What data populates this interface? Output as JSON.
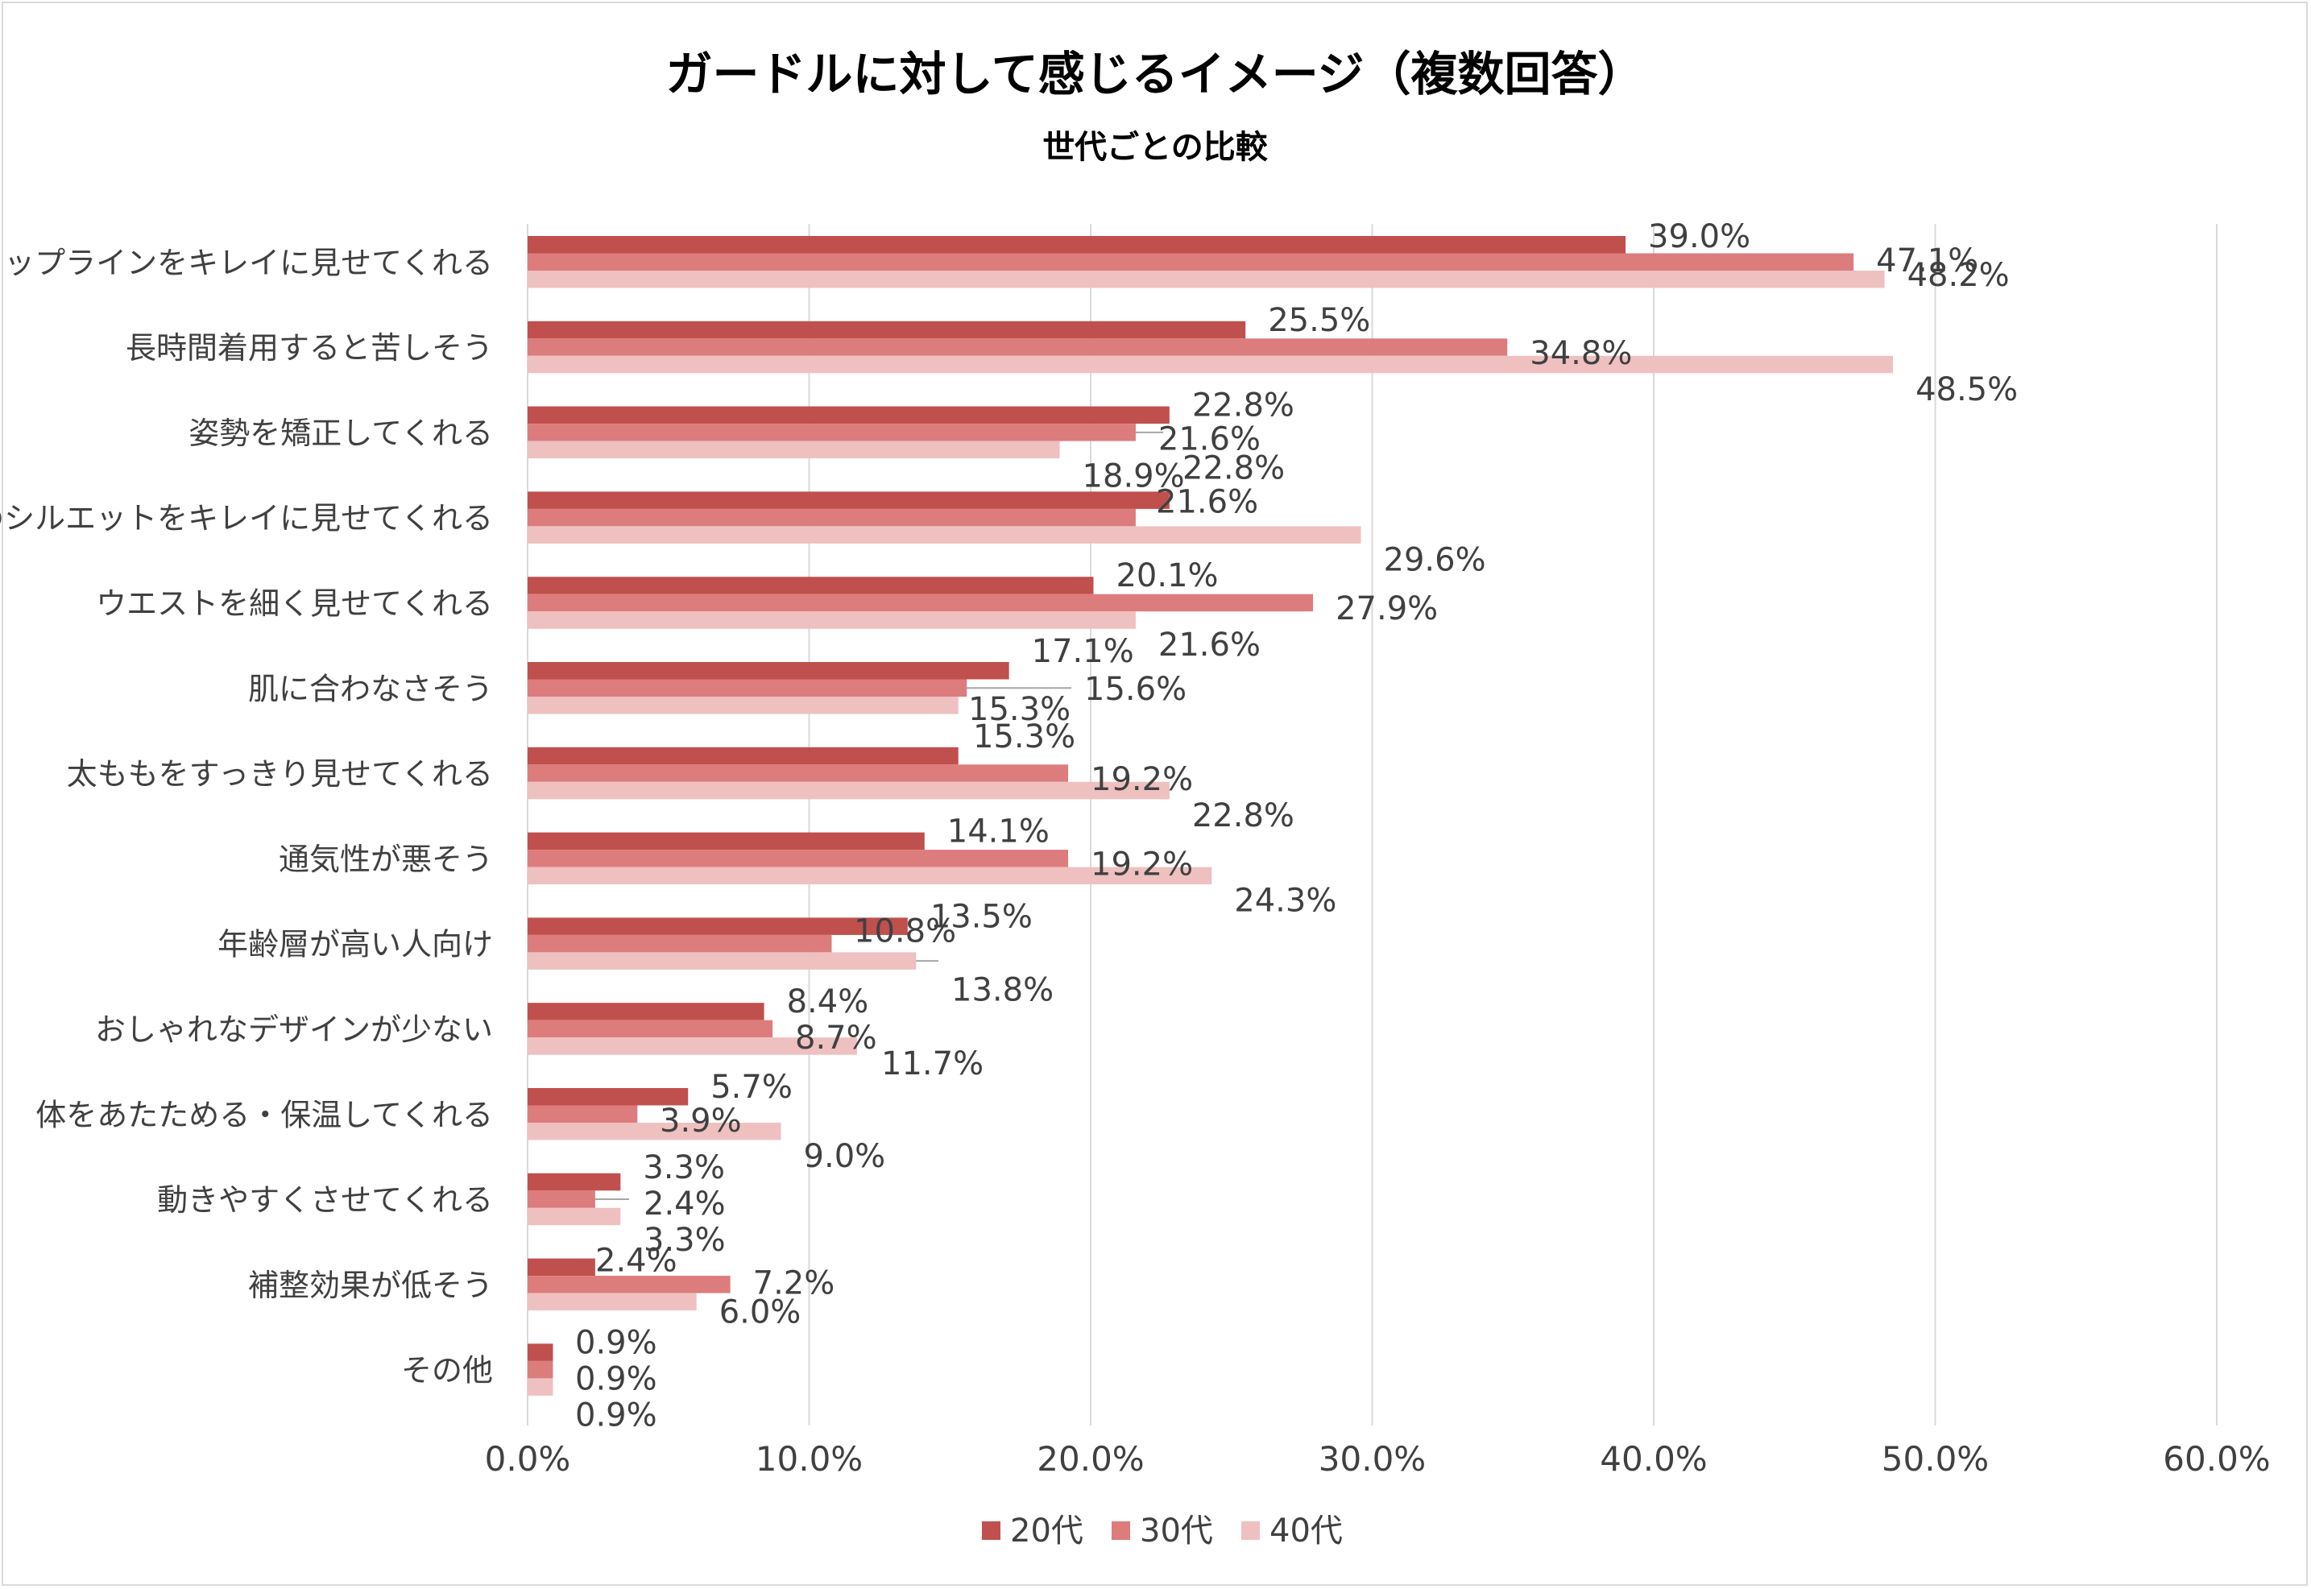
{
  "chart_data": {
    "type": "bar",
    "orientation": "horizontal",
    "title": "ガードルに対して感じるイメージ（複数回答）",
    "subtitle": "世代ごとの比較",
    "categories": [
      "ヒップラインをキレイに見せてくれる",
      "長時間着用すると苦しそう",
      "姿勢を矯正してくれる",
      "服のシルエットをキレイに見せてくれる",
      "ウエストを細く見せてくれる",
      "肌に合わなさそう",
      "太ももをすっきり見せてくれる",
      "通気性が悪そう",
      "年齢層が高い人向け",
      "おしゃれなデザインが少ない",
      "体をあたためる・保温してくれる",
      "動きやすくさせてくれる",
      "補整効果が低そう",
      "その他"
    ],
    "series": [
      {
        "name": "20代",
        "color": "#c0504d",
        "values": [
          39.0,
          25.5,
          22.8,
          22.8,
          20.1,
          17.1,
          15.3,
          14.1,
          13.5,
          8.4,
          5.7,
          3.3,
          2.4,
          0.9
        ]
      },
      {
        "name": "30代",
        "color": "#dc7c7c",
        "values": [
          47.1,
          34.8,
          21.6,
          21.6,
          27.9,
          15.6,
          19.2,
          19.2,
          10.8,
          8.7,
          3.9,
          2.4,
          7.2,
          0.9
        ]
      },
      {
        "name": "40代",
        "color": "#efc0c0",
        "values": [
          48.2,
          48.5,
          18.9,
          29.6,
          21.6,
          15.3,
          22.8,
          24.3,
          13.8,
          11.7,
          9.0,
          3.3,
          6.0,
          0.9
        ]
      }
    ],
    "value_labels": [
      [
        "39.0%",
        "25.5%",
        "22.8%",
        "22.8%",
        "20.1%",
        "17.1%",
        "15.3%",
        "14.1%",
        "13.5%",
        "8.4%",
        "5.7%",
        "3.3%",
        "2.4%",
        "0.9%"
      ],
      [
        "47.1%",
        "34.8%",
        "21.6%",
        "21.6%",
        "27.9%",
        "15.6%",
        "19.2%",
        "19.2%",
        "10.8%",
        "8.7%",
        "3.9%",
        "2.4%",
        "7.2%",
        "0.9%"
      ],
      [
        "48.2%",
        "48.5%",
        "18.9%",
        "29.6%",
        "21.6%",
        "15.3%",
        "22.8%",
        "24.3%",
        "13.8%",
        "11.7%",
        "9.0%",
        "3.3%",
        "6.0%",
        "0.9%"
      ]
    ],
    "xlim": [
      0,
      60
    ],
    "xticks": [
      0,
      10,
      20,
      30,
      40,
      50,
      60
    ],
    "xtick_labels": [
      "0.0%",
      "10.0%",
      "20.0%",
      "30.0%",
      "40.0%",
      "50.0%",
      "60.0%"
    ],
    "grid": true,
    "legend_position": "bottom",
    "legend": [
      "20代",
      "30代",
      "40代"
    ]
  }
}
